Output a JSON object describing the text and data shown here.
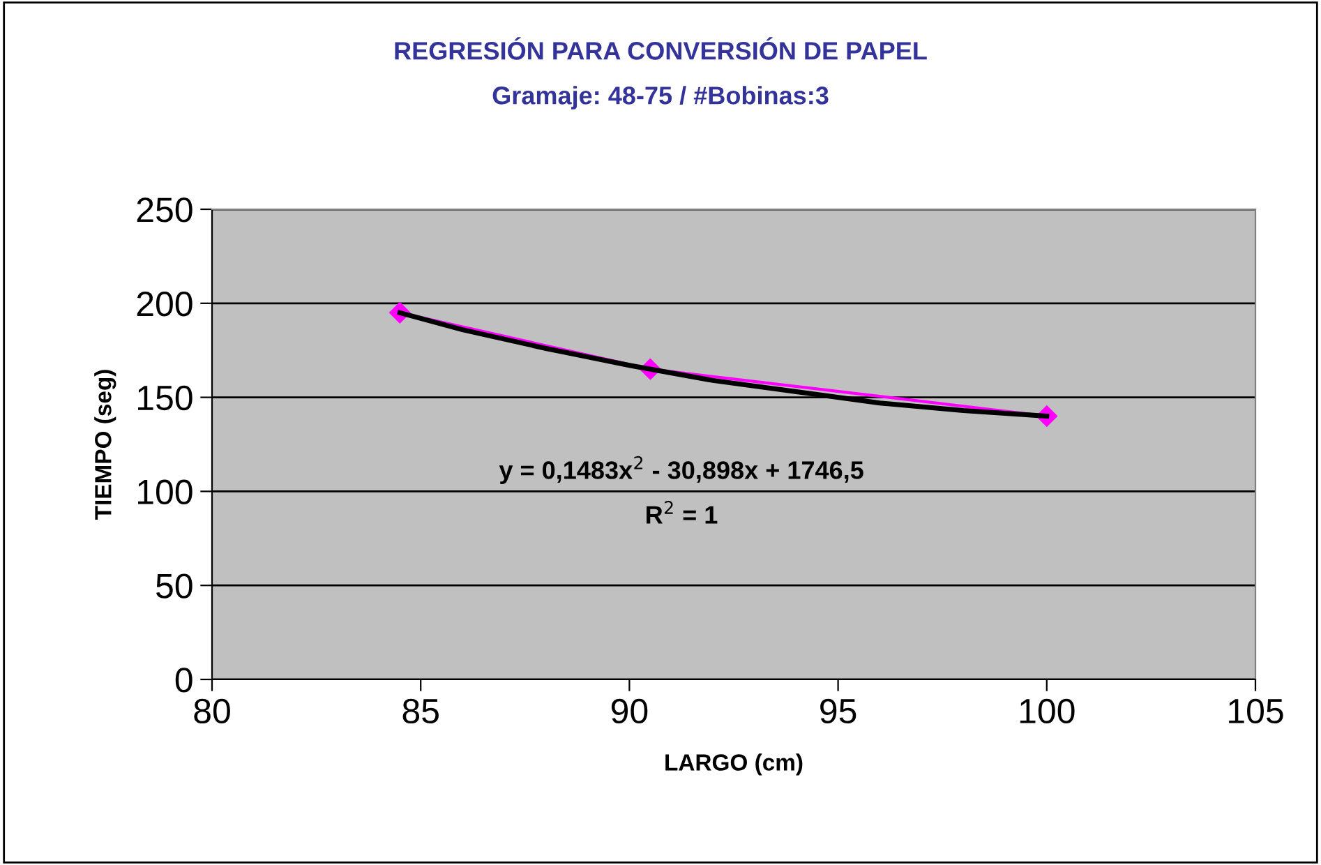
{
  "chart_data": {
    "type": "line",
    "title": "REGRESIÓN PARA CONVERSIÓN DE PAPEL",
    "subtitle": "Gramaje: 48-75 / #Bobinas:3",
    "xlabel": "LARGO (cm)",
    "ylabel": "TIEMPO (seg)",
    "series": [
      {
        "color": "#ff00ff",
        "marker": "diamond",
        "x": [
          84.5,
          90.5,
          100
        ],
        "values": [
          195,
          165,
          140
        ]
      },
      {
        "type": "line",
        "color": "#000000",
        "marker": "none",
        "x": [
          84.5,
          86,
          88,
          90,
          92,
          94,
          96,
          98,
          100
        ],
        "values": [
          195,
          186,
          176,
          167,
          159,
          153,
          147,
          143,
          140
        ]
      }
    ],
    "xlim": [
      80,
      105
    ],
    "xticks": [
      80,
      85,
      90,
      95,
      100,
      105
    ],
    "ylim": [
      0,
      250
    ],
    "yticks": [
      0,
      50,
      100,
      150,
      200,
      250
    ],
    "grid": "y",
    "annotations": [
      "y = 0,1483x$^{2}$ - 30,898x + 1746,5",
      "R$^{2}$ = 1"
    ]
  }
}
